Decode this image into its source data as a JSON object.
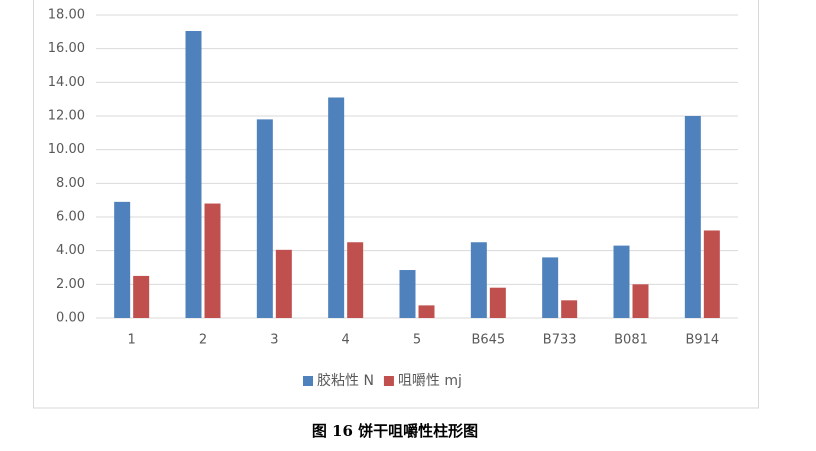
{
  "chart_data": {
    "type": "bar",
    "title": "图 16  饼干咀嚼性柱形图",
    "categories": [
      "1",
      "2",
      "3",
      "4",
      "5",
      "B645",
      "B733",
      "B081",
      "B914"
    ],
    "series": [
      {
        "name": "胶粘性  N",
        "color": "#4f81bd",
        "values": [
          6.9,
          17.05,
          11.8,
          13.1,
          2.85,
          4.5,
          3.6,
          4.3,
          12.0
        ]
      },
      {
        "name": "咀嚼性  mj",
        "color": "#c0504d",
        "values": [
          2.5,
          6.8,
          4.05,
          4.5,
          0.75,
          1.8,
          1.05,
          2.0,
          5.2
        ]
      }
    ],
    "ylim": [
      0,
      18
    ],
    "yticks": [
      {
        "value": 0,
        "label": "0.00"
      },
      {
        "value": 2,
        "label": "2.00"
      },
      {
        "value": 4,
        "label": "4.00"
      },
      {
        "value": 6,
        "label": "6.00"
      },
      {
        "value": 8,
        "label": "8.00"
      },
      {
        "value": 10,
        "label": "10.00"
      },
      {
        "value": 12,
        "label": "12.00"
      },
      {
        "value": 14,
        "label": "14.00"
      },
      {
        "value": 16,
        "label": "16.00"
      },
      {
        "value": 18,
        "label": "18.00"
      }
    ],
    "grid": true,
    "legend": "bottom"
  }
}
